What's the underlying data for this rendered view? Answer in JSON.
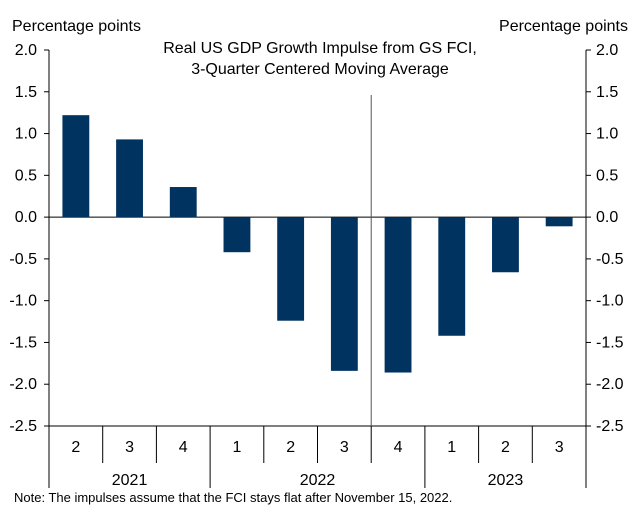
{
  "chart_data": {
    "type": "bar",
    "title": "Real US GDP Growth Impulse from GS FCI,",
    "subtitle": "3-Quarter Centered Moving Average",
    "ylabel_left": "Percentage points",
    "ylabel_right": "Percentage points",
    "ylim": [
      -2.5,
      2.0
    ],
    "yticks": [
      "2.0",
      "1.5",
      "1.0",
      "0.5",
      "0.0",
      "-0.5",
      "-1.0",
      "-1.5",
      "-2.0",
      "-2.5"
    ],
    "ytick_values": [
      2.0,
      1.5,
      1.0,
      0.5,
      0.0,
      -0.5,
      -1.0,
      -1.5,
      -2.0,
      -2.5
    ],
    "categories": [
      "2",
      "3",
      "4",
      "1",
      "2",
      "3",
      "4",
      "1",
      "2",
      "3"
    ],
    "years": [
      {
        "label": "2021",
        "count": 3
      },
      {
        "label": "2022",
        "count": 4
      },
      {
        "label": "2023",
        "count": 3
      }
    ],
    "values": [
      1.22,
      0.93,
      0.36,
      -0.42,
      -1.24,
      -1.84,
      -1.86,
      -1.42,
      -0.66,
      -0.11
    ],
    "forecast_divider_after_index": 5,
    "bar_color": "#003360",
    "grid": false,
    "note": "Note: The impulses assume that the FCI stays flat after November 15, 2022."
  }
}
